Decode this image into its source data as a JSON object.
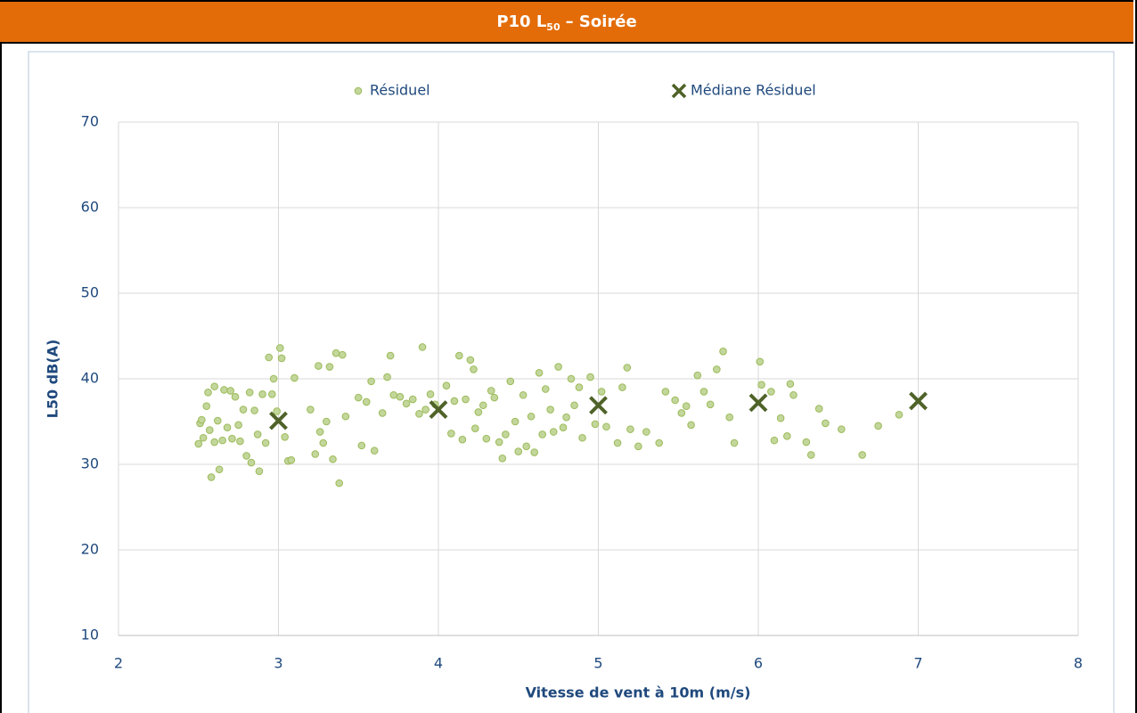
{
  "header": {
    "title": {
      "main": "P10 L",
      "sub": "50",
      "rest": "– Soirée"
    }
  },
  "chart_data": {
    "type": "scatter",
    "xlabel": "Vitesse de vent à 10m (m/s)",
    "ylabel": "L50 dB(A)",
    "xlim": [
      2,
      8
    ],
    "xticks": [
      2,
      3,
      4,
      5,
      6,
      7,
      8
    ],
    "ylim": [
      10,
      70
    ],
    "yticks": [
      10,
      20,
      30,
      40,
      50,
      60,
      70
    ],
    "grid": true,
    "legend": "top",
    "series": [
      {
        "name": "Résiduel",
        "color": "#c3d69b",
        "marker": "circle",
        "x": [
          2.5,
          2.51,
          2.52,
          2.53,
          2.55,
          2.56,
          2.57,
          2.58,
          2.6,
          2.6,
          2.62,
          2.63,
          2.65,
          2.66,
          2.68,
          2.7,
          2.71,
          2.73,
          2.75,
          2.76,
          2.78,
          2.8,
          2.82,
          2.83,
          2.85,
          2.87,
          2.88,
          2.9,
          2.92,
          2.94,
          2.96,
          2.97,
          2.99,
          3.01,
          3.02,
          3.04,
          3.06,
          3.08,
          3.1,
          3.2,
          3.23,
          3.25,
          3.26,
          3.28,
          3.3,
          3.32,
          3.34,
          3.36,
          3.38,
          3.4,
          3.42,
          3.5,
          3.52,
          3.55,
          3.58,
          3.6,
          3.65,
          3.68,
          3.7,
          3.72,
          3.76,
          3.8,
          3.84,
          3.88,
          3.9,
          3.92,
          3.95,
          3.98,
          4.05,
          4.08,
          4.1,
          4.13,
          4.15,
          4.17,
          4.2,
          4.22,
          4.23,
          4.25,
          4.28,
          4.3,
          4.33,
          4.35,
          4.38,
          4.4,
          4.42,
          4.45,
          4.48,
          4.5,
          4.53,
          4.55,
          4.58,
          4.6,
          4.63,
          4.65,
          4.67,
          4.7,
          4.72,
          4.75,
          4.78,
          4.8,
          4.83,
          4.85,
          4.88,
          4.9,
          4.95,
          4.98,
          5.02,
          5.05,
          5.12,
          5.15,
          5.18,
          5.2,
          5.25,
          5.3,
          5.38,
          5.42,
          5.48,
          5.52,
          5.55,
          5.58,
          5.62,
          5.66,
          5.7,
          5.74,
          5.78,
          5.82,
          5.85,
          6.01,
          6.02,
          6.08,
          6.1,
          6.14,
          6.18,
          6.2,
          6.22,
          6.3,
          6.33,
          6.38,
          6.42,
          6.52,
          6.65,
          6.75,
          6.88
        ],
        "values": [
          32.4,
          34.8,
          35.2,
          33.1,
          36.8,
          38.4,
          34.0,
          28.5,
          39.1,
          32.6,
          35.1,
          29.4,
          32.8,
          38.7,
          34.3,
          38.6,
          33.0,
          37.9,
          34.6,
          32.7,
          36.4,
          31.0,
          38.4,
          30.2,
          36.3,
          33.5,
          29.2,
          38.2,
          32.5,
          42.5,
          38.2,
          40.0,
          36.2,
          43.6,
          42.4,
          33.2,
          30.4,
          30.5,
          40.1,
          36.4,
          31.2,
          41.5,
          33.8,
          32.5,
          35.0,
          41.4,
          30.6,
          43.0,
          27.8,
          42.8,
          35.6,
          37.8,
          32.2,
          37.3,
          39.7,
          31.6,
          36.0,
          40.2,
          42.7,
          38.1,
          37.9,
          37.1,
          37.6,
          35.9,
          43.7,
          36.4,
          38.2,
          37.0,
          39.2,
          33.6,
          37.4,
          42.7,
          32.9,
          37.6,
          42.2,
          41.1,
          34.2,
          36.1,
          36.9,
          33.0,
          38.6,
          37.8,
          32.6,
          30.7,
          33.5,
          39.7,
          35.0,
          31.5,
          38.1,
          32.1,
          35.6,
          31.4,
          40.7,
          33.5,
          38.8,
          36.4,
          33.8,
          41.4,
          34.3,
          35.5,
          40.0,
          36.9,
          39.0,
          33.1,
          40.2,
          34.7,
          38.5,
          34.4,
          32.5,
          39.0,
          41.3,
          34.1,
          32.1,
          33.8,
          32.5,
          38.5,
          37.5,
          36.0,
          36.8,
          34.6,
          40.4,
          38.5,
          37.0,
          41.1,
          43.2,
          35.5,
          32.5,
          42.0,
          39.3,
          38.5,
          32.8,
          35.4,
          33.3,
          39.4,
          38.1,
          32.6,
          31.1,
          36.5,
          34.8,
          34.1,
          31.1,
          34.5,
          35.8
        ]
      },
      {
        "name": "Médiane Résiduel",
        "color": "#4f6228",
        "marker": "cross",
        "x": [
          3,
          4,
          5,
          6,
          7
        ],
        "values": [
          35.1,
          36.4,
          36.9,
          37.2,
          37.4
        ]
      }
    ]
  }
}
